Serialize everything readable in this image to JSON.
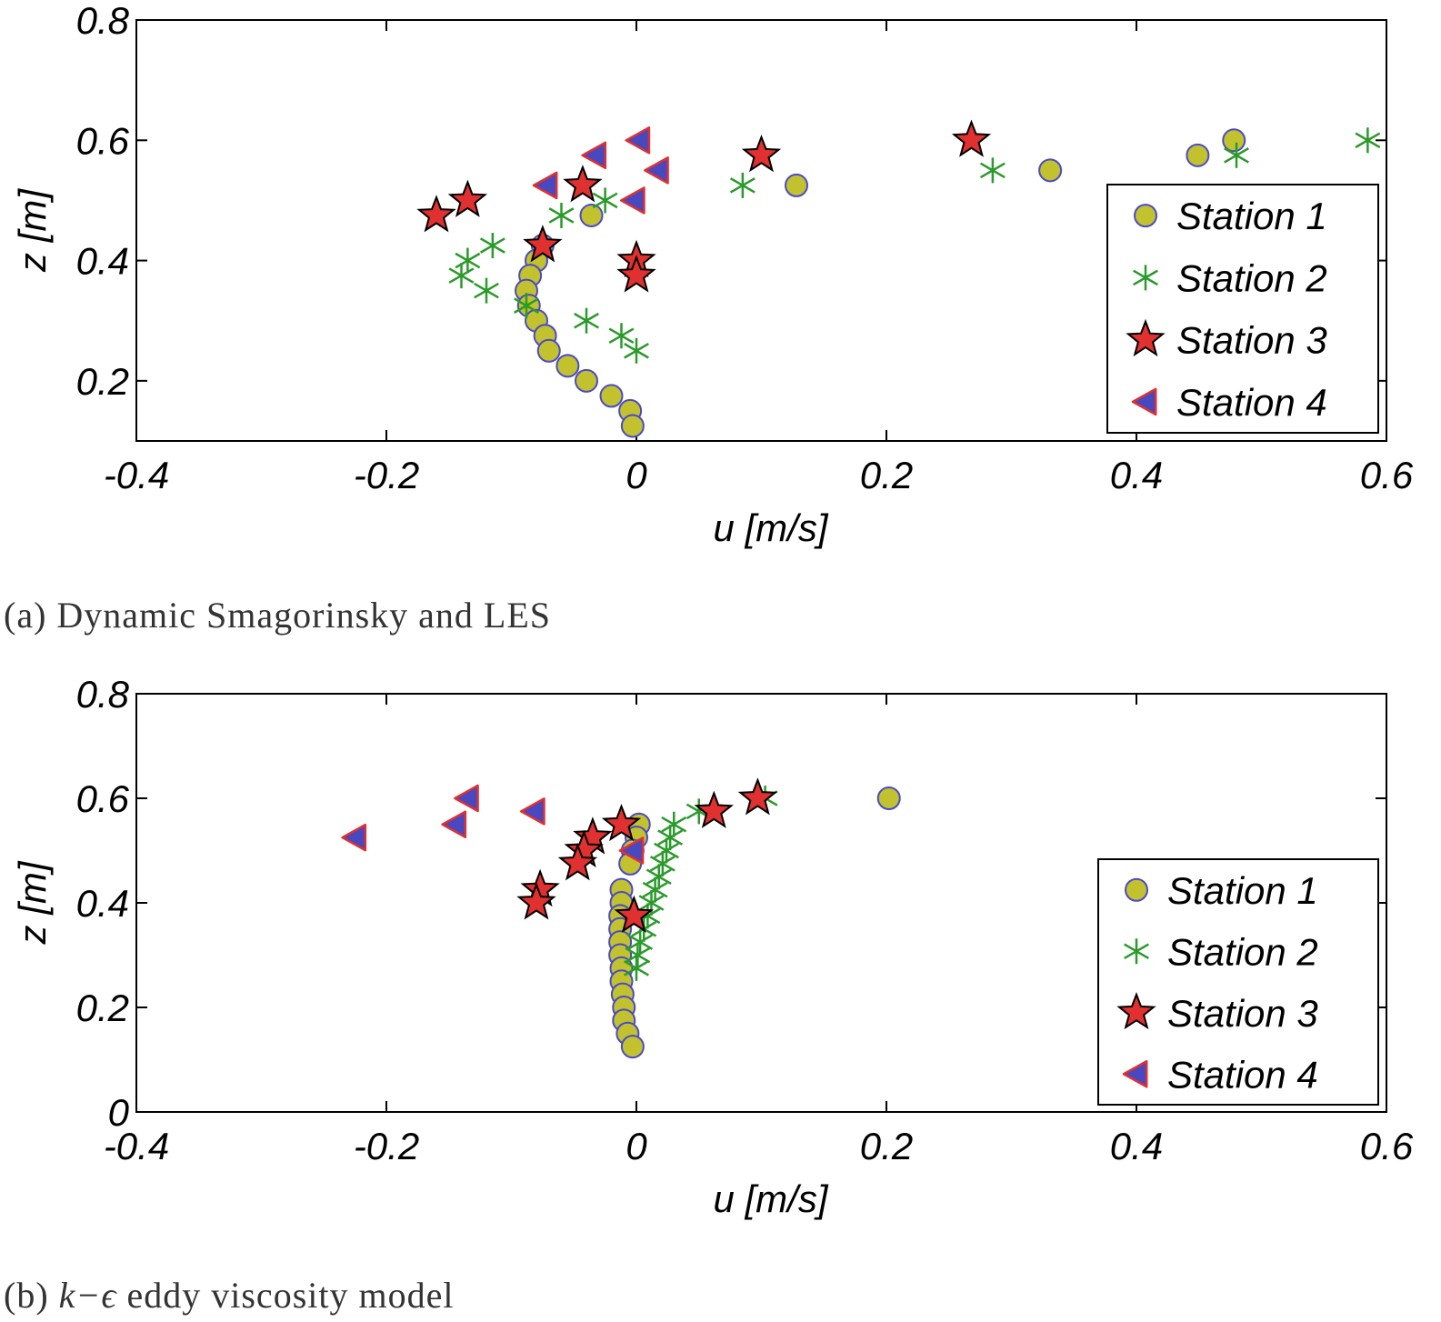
{
  "captions": {
    "a": "(a) Dynamic Smagorinsky and LES",
    "b_prefix": "(b) ",
    "b_math": "k−ϵ",
    "b_suffix": " eddy viscosity model"
  },
  "colors": {
    "circle_fill": "#c2c22e",
    "circle_edge": "#4a4ac8",
    "asterisk": "#2a9a2a",
    "star_fill": "#e03030",
    "star_edge": "#000000",
    "tri_fill": "#4848c0",
    "tri_edge": "#e03030"
  },
  "chart_data": [
    {
      "type": "scatter",
      "panel": "a",
      "xlabel": "u [m/s]",
      "ylabel": "z [m]",
      "xlim": [
        -0.4,
        0.6
      ],
      "ylim": [
        0.1,
        0.8
      ],
      "xticks": [
        "-0.4",
        "-0.2",
        "0",
        "0.2",
        "0.4",
        "0.6"
      ],
      "yticks": [
        "0.2",
        "0.4",
        "0.6",
        "0.8"
      ],
      "ytick_values": [
        0.2,
        0.4,
        0.6,
        0.8
      ],
      "grid": false,
      "legend_position": "lower-right",
      "series": [
        {
          "name": "Station 1",
          "marker": "circle",
          "points": [
            [
              0.478,
              0.6
            ],
            [
              0.449,
              0.575
            ],
            [
              0.331,
              0.55
            ],
            [
              0.128,
              0.525
            ],
            [
              -0.036,
              0.475
            ],
            [
              -0.075,
              0.425
            ],
            [
              -0.08,
              0.4
            ],
            [
              -0.085,
              0.375
            ],
            [
              -0.088,
              0.35
            ],
            [
              -0.086,
              0.325
            ],
            [
              -0.08,
              0.3
            ],
            [
              -0.073,
              0.275
            ],
            [
              -0.07,
              0.25
            ],
            [
              -0.055,
              0.225
            ],
            [
              -0.04,
              0.2
            ],
            [
              -0.02,
              0.175
            ],
            [
              -0.005,
              0.15
            ],
            [
              -0.003,
              0.125
            ]
          ]
        },
        {
          "name": "Station 2",
          "marker": "asterisk",
          "points": [
            [
              0.585,
              0.6
            ],
            [
              0.48,
              0.575
            ],
            [
              0.285,
              0.55
            ],
            [
              0.085,
              0.525
            ],
            [
              -0.025,
              0.5
            ],
            [
              -0.06,
              0.475
            ],
            [
              -0.115,
              0.425
            ],
            [
              -0.135,
              0.4
            ],
            [
              -0.14,
              0.375
            ],
            [
              -0.12,
              0.35
            ],
            [
              -0.088,
              0.325
            ],
            [
              -0.04,
              0.3
            ],
            [
              -0.012,
              0.275
            ],
            [
              0.0,
              0.25
            ]
          ]
        },
        {
          "name": "Station 3",
          "marker": "star",
          "points": [
            [
              0.268,
              0.6
            ],
            [
              0.1,
              0.575
            ],
            [
              -0.043,
              0.525
            ],
            [
              -0.135,
              0.5
            ],
            [
              -0.16,
              0.475
            ],
            [
              -0.075,
              0.425
            ],
            [
              0.0,
              0.4
            ],
            [
              0.0,
              0.375
            ]
          ]
        },
        {
          "name": "Station 4",
          "marker": "triangle-left",
          "points": [
            [
              0.002,
              0.6
            ],
            [
              -0.033,
              0.575
            ],
            [
              0.017,
              0.55
            ],
            [
              -0.072,
              0.525
            ],
            [
              -0.002,
              0.5
            ]
          ]
        }
      ]
    },
    {
      "type": "scatter",
      "panel": "b",
      "xlabel": "u [m/s]",
      "ylabel": "z [m]",
      "xlim": [
        -0.4,
        0.6
      ],
      "ylim": [
        0.0,
        0.8
      ],
      "xticks": [
        "-0.4",
        "-0.2",
        "0",
        "0.2",
        "0.4",
        "0.6"
      ],
      "yticks": [
        "0",
        "0.2",
        "0.4",
        "0.6",
        "0.8"
      ],
      "ytick_values": [
        0.0,
        0.2,
        0.4,
        0.6,
        0.8
      ],
      "grid": false,
      "legend_position": "lower-right",
      "series": [
        {
          "name": "Station 1",
          "marker": "circle",
          "points": [
            [
              0.202,
              0.6
            ],
            [
              0.002,
              0.55
            ],
            [
              0.0,
              0.525
            ],
            [
              -0.003,
              0.5
            ],
            [
              -0.005,
              0.475
            ],
            [
              -0.012,
              0.425
            ],
            [
              -0.012,
              0.4
            ],
            [
              -0.013,
              0.375
            ],
            [
              -0.013,
              0.35
            ],
            [
              -0.013,
              0.325
            ],
            [
              -0.013,
              0.3
            ],
            [
              -0.012,
              0.275
            ],
            [
              -0.012,
              0.25
            ],
            [
              -0.011,
              0.225
            ],
            [
              -0.01,
              0.2
            ],
            [
              -0.01,
              0.175
            ],
            [
              -0.007,
              0.15
            ],
            [
              -0.003,
              0.125
            ]
          ]
        },
        {
          "name": "Station 2",
          "marker": "asterisk",
          "points": [
            [
              0.103,
              0.6
            ],
            [
              0.05,
              0.575
            ],
            [
              0.03,
              0.55
            ],
            [
              0.027,
              0.525
            ],
            [
              0.024,
              0.5
            ],
            [
              0.021,
              0.475
            ],
            [
              0.018,
              0.45
            ],
            [
              0.015,
              0.425
            ],
            [
              0.012,
              0.4
            ],
            [
              0.009,
              0.375
            ],
            [
              0.006,
              0.35
            ],
            [
              0.003,
              0.325
            ],
            [
              0.001,
              0.3
            ],
            [
              0.0,
              0.275
            ]
          ]
        },
        {
          "name": "Station 3",
          "marker": "star",
          "points": [
            [
              0.097,
              0.6
            ],
            [
              0.062,
              0.575
            ],
            [
              -0.012,
              0.55
            ],
            [
              -0.035,
              0.525
            ],
            [
              -0.042,
              0.5
            ],
            [
              -0.047,
              0.475
            ],
            [
              -0.077,
              0.425
            ],
            [
              -0.08,
              0.4
            ],
            [
              -0.002,
              0.375
            ]
          ]
        },
        {
          "name": "Station 4",
          "marker": "triangle-left",
          "points": [
            [
              -0.135,
              0.6
            ],
            [
              -0.082,
              0.575
            ],
            [
              -0.145,
              0.55
            ],
            [
              -0.225,
              0.525
            ],
            [
              -0.003,
              0.5
            ]
          ]
        }
      ]
    }
  ]
}
